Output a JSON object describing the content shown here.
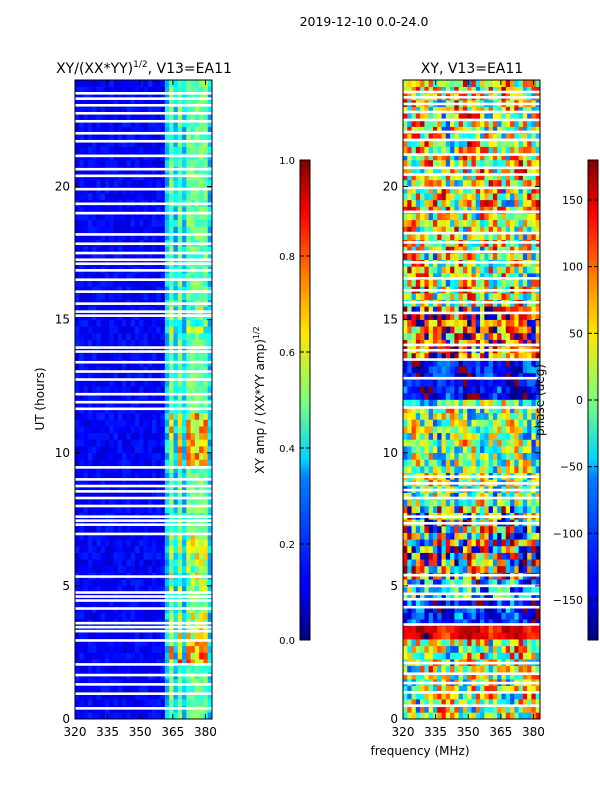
{
  "figure_title": "2019-12-10 0.0-24.0",
  "chart_data": [
    {
      "type": "heatmap",
      "title_main": "XY/(XX*YY)",
      "title_sup": "1/2",
      "title_tail": ", V13=EA11",
      "xlabel": "",
      "ylabel": "UT (hours)",
      "xlim": [
        320,
        383
      ],
      "ylim": [
        0,
        24
      ],
      "xticks": [
        320,
        335,
        350,
        365,
        380
      ],
      "yticks": [
        0,
        5,
        10,
        15,
        20
      ],
      "colorbar": {
        "label_main": "XY amp / (XX*YY amp)",
        "label_sup": "1/2",
        "range": [
          0,
          1
        ],
        "ticks": [
          "0.0",
          "0.2",
          "0.4",
          "0.6",
          "0.8",
          "1.0"
        ],
        "tick_values": [
          0,
          0.2,
          0.4,
          0.6,
          0.8,
          1.0
        ]
      },
      "colormap": "jet",
      "background_value": 0.08,
      "bright_channels_mhz": [
        364.6,
        367.8,
        371.7,
        375.3,
        379.0
      ],
      "bright_hour_bands": [
        {
          "from": 2.1,
          "to": 2.9,
          "value": 0.7
        },
        {
          "from": 3.0,
          "to": 4.1,
          "value": 0.6
        },
        {
          "from": 4.8,
          "to": 6.9,
          "value": 0.55
        },
        {
          "from": 9.5,
          "to": 11.6,
          "value": 0.65
        },
        {
          "from": 14.6,
          "to": 15.4,
          "value": 0.5
        }
      ],
      "gap_hours": [
        0.4,
        0.95,
        1.3,
        1.65,
        2.05,
        2.95,
        3.3,
        3.45,
        3.6,
        4.15,
        4.45,
        4.6,
        4.75,
        5.35,
        6.95,
        7.3,
        7.45,
        7.6,
        8.0,
        8.3,
        8.55,
        8.75,
        9.0,
        9.45,
        11.65,
        11.9,
        12.2,
        12.75,
        13.05,
        13.4,
        13.8,
        13.95,
        15.15,
        15.3,
        15.6,
        16.05,
        16.5,
        16.85,
        17.1,
        17.25,
        17.5,
        17.85,
        18.2,
        19.0,
        19.35,
        19.9,
        20.4,
        20.65,
        21.15,
        21.7,
        22.0,
        22.45,
        22.75,
        23.05,
        23.3,
        23.5
      ]
    },
    {
      "type": "heatmap",
      "title": "XY, V13=EA11",
      "xlabel": "frequency (MHz)",
      "ylabel": "",
      "xlim": [
        320,
        383
      ],
      "ylim": [
        0,
        24
      ],
      "xticks": [
        320,
        335,
        350,
        365,
        380
      ],
      "yticks": [
        0,
        5,
        10,
        15,
        20
      ],
      "colorbar": {
        "label": "phase (deg)",
        "range": [
          -180,
          180
        ],
        "ticks": [
          "−150",
          "−100",
          "−50",
          "0",
          "50",
          "100",
          "150"
        ],
        "tick_values": [
          -150,
          -100,
          -50,
          0,
          50,
          100,
          150
        ]
      },
      "colormap": "jet",
      "hour_regions": [
        {
          "from": 0.0,
          "to": 2.9,
          "mean": 20,
          "spread": 110
        },
        {
          "from": 2.9,
          "to": 3.6,
          "mean": 140,
          "spread": 20
        },
        {
          "from": 3.6,
          "to": 4.6,
          "mean": -120,
          "spread": 50
        },
        {
          "from": 4.6,
          "to": 5.3,
          "mean": -60,
          "spread": 100
        },
        {
          "from": 5.3,
          "to": 8.1,
          "mean": 150,
          "spread": 160
        },
        {
          "from": 8.1,
          "to": 11.9,
          "mean": 0,
          "spread": 100
        },
        {
          "from": 11.9,
          "to": 13.4,
          "mean": -130,
          "spread": 40
        },
        {
          "from": 13.4,
          "to": 15.6,
          "mean": 120,
          "spread": 120
        },
        {
          "from": 15.6,
          "to": 24.0,
          "mean": 30,
          "spread": 120
        }
      ],
      "gap_hours": [
        0.5,
        1.0,
        1.35,
        1.7,
        2.1,
        3.55,
        4.2,
        4.5,
        4.7,
        5.0,
        5.4,
        7.35,
        7.6,
        8.3,
        8.6,
        8.85,
        9.1,
        11.7,
        12.8,
        13.5,
        13.85,
        14.05,
        15.25,
        15.65,
        16.1,
        16.55,
        17.15,
        17.55,
        17.9,
        18.25,
        19.05,
        19.95,
        20.45,
        20.7,
        21.2,
        21.75,
        22.05,
        22.5,
        22.8,
        23.1,
        23.35,
        23.55
      ]
    }
  ]
}
